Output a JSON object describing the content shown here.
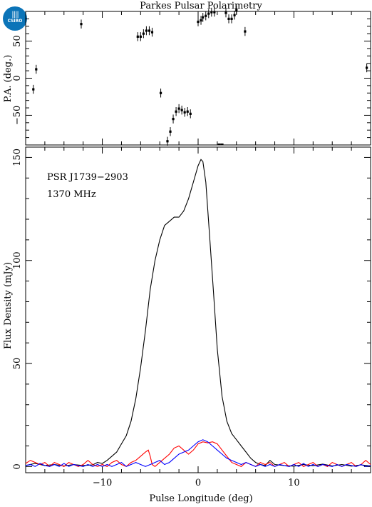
{
  "logo": {
    "text": "CSIRO",
    "icon": "csiro-logo-icon",
    "color": "#0b74b8"
  },
  "chart_data": [
    {
      "type": "scatter",
      "title": "Parkes Pulsar Polarimetry",
      "ylabel": "P.A. (deg.)",
      "xlim": [
        -18,
        18
      ],
      "ylim": [
        -90,
        90
      ],
      "yticks": [
        -50,
        0,
        50
      ],
      "error_bar": 6,
      "points": [
        [
          -17.2,
          -15
        ],
        [
          -16.9,
          12
        ],
        [
          -12.2,
          73
        ],
        [
          -6.3,
          56
        ],
        [
          -6.0,
          56
        ],
        [
          -5.7,
          60
        ],
        [
          -5.4,
          64
        ],
        [
          -5.1,
          64
        ],
        [
          -4.8,
          62
        ],
        [
          -3.9,
          -20
        ],
        [
          -3.2,
          -85
        ],
        [
          -2.9,
          -72
        ],
        [
          -2.6,
          -55
        ],
        [
          -2.3,
          -45
        ],
        [
          -2.0,
          -41
        ],
        [
          -1.7,
          -43
        ],
        [
          -1.4,
          -46
        ],
        [
          -1.1,
          -45
        ],
        [
          -0.8,
          -48
        ],
        [
          0.0,
          76
        ],
        [
          0.3,
          78
        ],
        [
          0.5,
          82
        ],
        [
          0.8,
          84
        ],
        [
          1.1,
          87
        ],
        [
          1.4,
          89
        ],
        [
          1.7,
          89
        ],
        [
          2.9,
          88
        ],
        [
          3.2,
          80
        ],
        [
          3.5,
          80
        ],
        [
          3.8,
          85
        ],
        [
          4.0,
          92
        ],
        [
          4.9,
          63
        ],
        [
          17.6,
          14
        ]
      ],
      "dashes": [
        [
          2.2,
          -90
        ],
        [
          2.5,
          -90
        ]
      ]
    },
    {
      "type": "line",
      "xlabel": "Pulse Longitude (deg)",
      "ylabel": "Flux Density (mJy)",
      "xlim": [
        -18,
        18
      ],
      "ylim": [
        -3,
        155
      ],
      "xticks": [
        -10,
        0,
        10
      ],
      "yticks": [
        0,
        50,
        100,
        150
      ],
      "annotations": [
        "PSR J1739−2903",
        "1370 MHz"
      ],
      "series": [
        {
          "color": "#000000",
          "points": [
            [
              -18,
              0.5
            ],
            [
              -17,
              1.5
            ],
            [
              -16,
              0.5
            ],
            [
              -15,
              1
            ],
            [
              -14,
              0.3
            ],
            [
              -13,
              1
            ],
            [
              -12,
              0.5
            ],
            [
              -11,
              0.8
            ],
            [
              -10.5,
              2
            ],
            [
              -10,
              1.5
            ],
            [
              -9.5,
              3
            ],
            [
              -9,
              5
            ],
            [
              -8.5,
              7
            ],
            [
              -8,
              11
            ],
            [
              -7.5,
              15
            ],
            [
              -7,
              22
            ],
            [
              -6.5,
              33
            ],
            [
              -6,
              48
            ],
            [
              -5.5,
              66
            ],
            [
              -5,
              86
            ],
            [
              -4.5,
              100
            ],
            [
              -4,
              110
            ],
            [
              -3.5,
              117
            ],
            [
              -3,
              119
            ],
            [
              -2.5,
              121
            ],
            [
              -2,
              121
            ],
            [
              -1.5,
              124
            ],
            [
              -1,
              130
            ],
            [
              -0.5,
              138
            ],
            [
              0,
              146
            ],
            [
              0.3,
              149
            ],
            [
              0.5,
              148
            ],
            [
              0.8,
              138
            ],
            [
              1.2,
              112
            ],
            [
              1.6,
              85
            ],
            [
              2,
              57
            ],
            [
              2.5,
              34
            ],
            [
              3,
              22
            ],
            [
              3.5,
              16
            ],
            [
              4,
              13
            ],
            [
              4.5,
              10
            ],
            [
              5,
              7
            ],
            [
              5.5,
              4
            ],
            [
              6,
              2
            ],
            [
              6.5,
              1
            ],
            [
              7,
              0.5
            ],
            [
              7.5,
              3
            ],
            [
              8,
              1
            ],
            [
              9,
              0.5
            ],
            [
              10,
              0.2
            ],
            [
              11,
              1
            ],
            [
              12,
              0.4
            ],
            [
              13,
              1.2
            ],
            [
              14,
              0.3
            ],
            [
              15,
              1
            ],
            [
              16,
              0.2
            ],
            [
              17,
              0.8
            ],
            [
              18,
              0.3
            ]
          ]
        },
        {
          "color": "#ff0000",
          "points": [
            [
              -18,
              1.5
            ],
            [
              -17.5,
              3
            ],
            [
              -17,
              2
            ],
            [
              -16.5,
              1
            ],
            [
              -16,
              2
            ],
            [
              -15.5,
              0
            ],
            [
              -15,
              2
            ],
            [
              -14.5,
              1
            ],
            [
              -14,
              0
            ],
            [
              -13.5,
              2
            ],
            [
              -13,
              1
            ],
            [
              -12.5,
              0
            ],
            [
              -12,
              1
            ],
            [
              -11.5,
              3
            ],
            [
              -11,
              1
            ],
            [
              -10.5,
              0
            ],
            [
              -10,
              1
            ],
            [
              -9.5,
              0
            ],
            [
              -9,
              2
            ],
            [
              -8.5,
              3
            ],
            [
              -8,
              1
            ],
            [
              -7.5,
              0
            ],
            [
              -7,
              2
            ],
            [
              -6.5,
              3
            ],
            [
              -6,
              5
            ],
            [
              -5.5,
              7
            ],
            [
              -5.2,
              8
            ],
            [
              -5,
              5
            ],
            [
              -4.8,
              1
            ],
            [
              -4.5,
              0
            ],
            [
              -4,
              2
            ],
            [
              -3.5,
              4
            ],
            [
              -3,
              6
            ],
            [
              -2.5,
              9
            ],
            [
              -2,
              10
            ],
            [
              -1.5,
              8
            ],
            [
              -1,
              6
            ],
            [
              -0.5,
              8
            ],
            [
              0,
              11
            ],
            [
              0.5,
              12
            ],
            [
              1,
              11.5
            ],
            [
              1.5,
              12
            ],
            [
              2,
              11
            ],
            [
              2.5,
              8
            ],
            [
              3,
              5
            ],
            [
              3.5,
              2
            ],
            [
              4,
              1
            ],
            [
              4.5,
              0
            ],
            [
              5,
              2
            ],
            [
              5.5,
              1
            ],
            [
              6,
              0
            ],
            [
              6.5,
              2
            ],
            [
              7,
              1
            ],
            [
              7.5,
              2
            ],
            [
              8,
              0
            ],
            [
              8.5,
              1
            ],
            [
              9,
              2
            ],
            [
              9.5,
              0
            ],
            [
              10,
              1
            ],
            [
              10.5,
              2
            ],
            [
              11,
              0
            ],
            [
              11.5,
              1
            ],
            [
              12,
              2
            ],
            [
              12.5,
              0
            ],
            [
              13,
              1
            ],
            [
              13.5,
              0
            ],
            [
              14,
              2
            ],
            [
              14.5,
              1
            ],
            [
              15,
              0
            ],
            [
              15.5,
              1
            ],
            [
              16,
              2
            ],
            [
              16.5,
              0
            ],
            [
              17,
              1
            ],
            [
              17.5,
              3
            ],
            [
              18,
              1
            ]
          ]
        },
        {
          "color": "#0000ff",
          "points": [
            [
              -18,
              0.5
            ],
            [
              -17.5,
              1
            ],
            [
              -17,
              0
            ],
            [
              -16.5,
              1.5
            ],
            [
              -16,
              0.5
            ],
            [
              -15.5,
              0
            ],
            [
              -15,
              1
            ],
            [
              -14.5,
              0
            ],
            [
              -14,
              1.5
            ],
            [
              -13.5,
              0
            ],
            [
              -13,
              1
            ],
            [
              -12.5,
              0.5
            ],
            [
              -12,
              0
            ],
            [
              -11.5,
              1
            ],
            [
              -11,
              0
            ],
            [
              -10.5,
              1
            ],
            [
              -10,
              0
            ],
            [
              -9.5,
              1
            ],
            [
              -9,
              0
            ],
            [
              -8.5,
              1
            ],
            [
              -8,
              2
            ],
            [
              -7.5,
              0
            ],
            [
              -7,
              1
            ],
            [
              -6.5,
              2
            ],
            [
              -6,
              1
            ],
            [
              -5.5,
              0
            ],
            [
              -5,
              1
            ],
            [
              -4.5,
              2
            ],
            [
              -4,
              3
            ],
            [
              -3.5,
              1
            ],
            [
              -3,
              2
            ],
            [
              -2.5,
              4
            ],
            [
              -2,
              6
            ],
            [
              -1.5,
              7
            ],
            [
              -1,
              8
            ],
            [
              -0.5,
              10
            ],
            [
              0,
              12
            ],
            [
              0.5,
              13
            ],
            [
              1,
              12
            ],
            [
              1.5,
              10
            ],
            [
              2,
              8
            ],
            [
              2.5,
              6
            ],
            [
              3,
              4
            ],
            [
              3.5,
              3
            ],
            [
              4,
              2
            ],
            [
              4.5,
              1
            ],
            [
              5,
              2
            ],
            [
              5.5,
              1
            ],
            [
              6,
              0
            ],
            [
              6.5,
              1
            ],
            [
              7,
              0
            ],
            [
              7.5,
              1
            ],
            [
              8,
              0
            ],
            [
              8.5,
              1
            ],
            [
              9,
              0.5
            ],
            [
              9.5,
              0
            ],
            [
              10,
              1
            ],
            [
              10.5,
              0
            ],
            [
              11,
              1.5
            ],
            [
              11.5,
              0
            ],
            [
              12,
              1
            ],
            [
              12.5,
              0
            ],
            [
              13,
              1
            ],
            [
              13.5,
              0.5
            ],
            [
              14,
              0
            ],
            [
              14.5,
              1
            ],
            [
              15,
              0
            ],
            [
              15.5,
              1
            ],
            [
              16,
              0.5
            ],
            [
              16.5,
              0
            ],
            [
              17,
              1
            ],
            [
              17.5,
              0
            ],
            [
              18,
              0.5
            ]
          ]
        }
      ]
    }
  ]
}
